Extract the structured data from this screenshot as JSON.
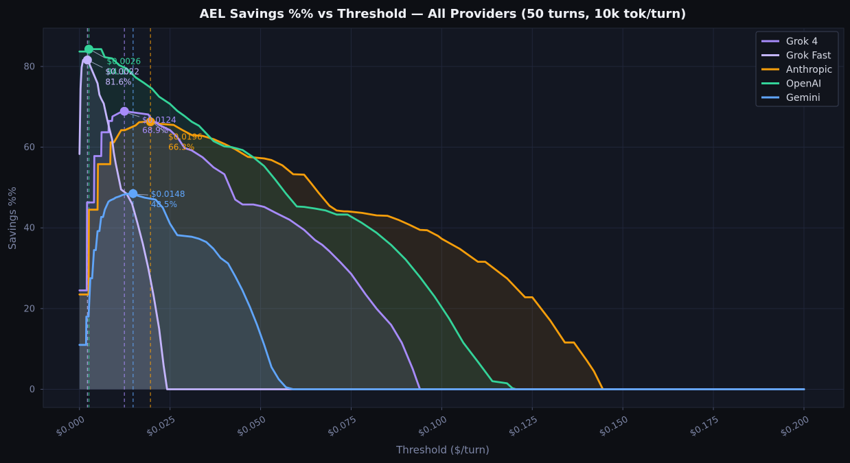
{
  "chart_data": {
    "type": "line",
    "title": "AEL Savings %% vs Threshold — All Providers (50 turns, 10k tok/turn)",
    "xlabel": "Threshold ($/turn)",
    "ylabel": "Savings %%",
    "xlim": [
      -0.01,
      0.211
    ],
    "ylim": [
      -4.5,
      89.5
    ],
    "xticks": [
      0.0,
      0.025,
      0.05,
      0.075,
      0.1,
      0.125,
      0.15,
      0.175,
      0.2
    ],
    "xtick_labels": [
      "$0.000",
      "$0.025",
      "$0.050",
      "$0.075",
      "$0.100",
      "$0.125",
      "$0.150",
      "$0.175",
      "$0.200"
    ],
    "yticks": [
      0,
      20,
      40,
      60,
      80
    ],
    "ytick_labels": [
      "0",
      "20",
      "40",
      "60",
      "80"
    ],
    "grid": true,
    "legend_position": "top-right",
    "series": [
      {
        "name": "Grok 4",
        "color": "#a78bfa",
        "x": [
          0,
          0.002,
          0.0021,
          0.004,
          0.0041,
          0.006,
          0.0061,
          0.008,
          0.0081,
          0.009,
          0.0091,
          0.011,
          0.012,
          0.0124,
          0.015,
          0.019,
          0.02,
          0.022,
          0.025,
          0.027,
          0.029,
          0.031,
          0.034,
          0.037,
          0.04,
          0.043,
          0.045,
          0.048,
          0.051,
          0.054,
          0.058,
          0.062,
          0.065,
          0.067,
          0.069,
          0.072,
          0.075,
          0.079,
          0.082,
          0.086,
          0.089,
          0.092,
          0.093,
          0.094,
          0.095,
          0.096,
          0.2
        ],
        "y": [
          24.5,
          24.5,
          46.3,
          46.3,
          57.8,
          57.8,
          63.7,
          63.7,
          66.5,
          66.5,
          67.6,
          68.5,
          68.9,
          68.9,
          68.6,
          68.1,
          66.8,
          65.5,
          64.2,
          62.5,
          59.8,
          59.2,
          57.5,
          55,
          53.3,
          47,
          45.8,
          45.8,
          45.2,
          43.8,
          42.0,
          39.5,
          37,
          35.8,
          34.2,
          31.5,
          28.6,
          23.5,
          20,
          16,
          11.5,
          5,
          2.5,
          0,
          0,
          0,
          0
        ]
      },
      {
        "name": "Grok Fast",
        "color": "#c4b5fd",
        "x": [
          0,
          0.0003,
          0.0006,
          0.001,
          0.0015,
          0.002,
          0.0022,
          0.0028,
          0.0035,
          0.0042,
          0.005,
          0.0055,
          0.006,
          0.0067,
          0.0075,
          0.0082,
          0.009,
          0.0095,
          0.01,
          0.0115,
          0.013,
          0.0145,
          0.016,
          0.0175,
          0.019,
          0.0205,
          0.022,
          0.0232,
          0.0242,
          0.2
        ],
        "y": [
          58.3,
          74.5,
          79.8,
          81.6,
          81.6,
          81.6,
          81.6,
          80.5,
          79,
          77.5,
          75.8,
          73,
          72,
          70.8,
          67.5,
          64.8,
          62,
          58.5,
          56,
          49.5,
          48.5,
          46,
          41.2,
          36,
          30,
          23,
          15,
          6,
          0,
          0
        ]
      },
      {
        "name": "Anthropic",
        "color": "#f59e0b",
        "x": [
          0,
          0.0025,
          0.0026,
          0.005,
          0.0051,
          0.0085,
          0.0086,
          0.0095,
          0.0115,
          0.0125,
          0.0155,
          0.0165,
          0.0185,
          0.0196,
          0.022,
          0.026,
          0.0285,
          0.031,
          0.034,
          0.037,
          0.04,
          0.043,
          0.0465,
          0.051,
          0.053,
          0.056,
          0.059,
          0.062,
          0.064,
          0.066,
          0.069,
          0.071,
          0.073,
          0.074,
          0.078,
          0.082,
          0.085,
          0.088,
          0.091,
          0.094,
          0.096,
          0.099,
          0.1,
          0.105,
          0.11,
          0.112,
          0.118,
          0.123,
          0.125,
          0.13,
          0.134,
          0.1365,
          0.14,
          0.142,
          0.1445,
          0.2
        ],
        "y": [
          23.5,
          23.5,
          44.5,
          44.5,
          55.8,
          55.8,
          61.2,
          61.2,
          64.2,
          64.2,
          65.4,
          66.2,
          66.3,
          66.3,
          65.8,
          65.5,
          64.2,
          63.0,
          62.8,
          62.0,
          60.8,
          59.5,
          57.6,
          57.2,
          56.8,
          55.5,
          53.3,
          53.2,
          51,
          48.7,
          45.5,
          44.3,
          44.1,
          44.1,
          43.7,
          43.1,
          43.0,
          42,
          40.8,
          39.5,
          39.4,
          38.0,
          37.3,
          34.8,
          31.6,
          31.6,
          27.5,
          22.8,
          22.8,
          17,
          11.6,
          11.6,
          7.2,
          4.5,
          0,
          0
        ]
      },
      {
        "name": "OpenAI",
        "color": "#34d399",
        "x": [
          0,
          0.0005,
          0.001,
          0.0015,
          0.002,
          0.0026,
          0.004,
          0.006,
          0.007,
          0.009,
          0.011,
          0.013,
          0.0155,
          0.018,
          0.02,
          0.022,
          0.025,
          0.027,
          0.029,
          0.031,
          0.033,
          0.035,
          0.037,
          0.04,
          0.042,
          0.045,
          0.048,
          0.051,
          0.054,
          0.057,
          0.06,
          0.062,
          0.065,
          0.068,
          0.071,
          0.074,
          0.078,
          0.082,
          0.086,
          0.09,
          0.094,
          0.098,
          0.102,
          0.106,
          0.11,
          0.114,
          0.118,
          0.1195,
          0.1205,
          0.2
        ],
        "y": [
          83.7,
          83.7,
          83.7,
          83.7,
          83.7,
          84.3,
          84.3,
          84.3,
          82.3,
          82.0,
          80.3,
          79.5,
          77.3,
          75.8,
          74.5,
          72.5,
          70.7,
          69.0,
          67.7,
          66.3,
          65.3,
          63.4,
          61.5,
          60.2,
          60,
          59.3,
          57.5,
          55.3,
          52.0,
          48.5,
          45.3,
          45.2,
          44.8,
          44.3,
          43.3,
          43.3,
          41.2,
          38.8,
          35.8,
          32.2,
          27.8,
          23.0,
          17.6,
          11.5,
          6.8,
          2.0,
          1.5,
          0.3,
          0,
          0
        ]
      },
      {
        "name": "Gemini",
        "color": "#60a5fa",
        "x": [
          0,
          0.0018,
          0.0019,
          0.0025,
          0.003,
          0.0035,
          0.004,
          0.0045,
          0.005,
          0.0055,
          0.006,
          0.0065,
          0.007,
          0.0075,
          0.008,
          0.0085,
          0.009,
          0.0095,
          0.01,
          0.011,
          0.012,
          0.013,
          0.0148,
          0.016,
          0.018,
          0.021,
          0.023,
          0.025,
          0.027,
          0.029,
          0.031,
          0.033,
          0.035,
          0.037,
          0.039,
          0.041,
          0.043,
          0.045,
          0.047,
          0.049,
          0.051,
          0.053,
          0.055,
          0.057,
          0.059,
          0.0605,
          0.2
        ],
        "y": [
          11,
          11,
          18,
          18,
          27.5,
          27.5,
          34.5,
          34.5,
          39.2,
          39.2,
          42.7,
          42.7,
          44.5,
          45.5,
          46.5,
          46.8,
          47.0,
          47.2,
          47.5,
          47.8,
          48.2,
          48.4,
          48.5,
          48.0,
          47.5,
          47.0,
          45.0,
          41.0,
          38.2,
          38.0,
          37.8,
          37.3,
          36.5,
          34.8,
          32.5,
          31.2,
          28.0,
          24.5,
          20.5,
          16.0,
          11.0,
          5.5,
          2.5,
          0.5,
          0,
          0,
          0
        ]
      }
    ],
    "vlines": [
      {
        "x": 0.0022,
        "color": "#c4b5fd"
      },
      {
        "x": 0.0026,
        "color": "#34d399"
      },
      {
        "x": 0.0124,
        "color": "#a78bfa"
      },
      {
        "x": 0.0148,
        "color": "#60a5fa"
      },
      {
        "x": 0.0196,
        "color": "#f59e0b"
      }
    ],
    "annotations": [
      {
        "series": "OpenAI",
        "x": 0.0026,
        "y": 84.3,
        "text_line1": "$0.0026",
        "text_line2": "84.3%",
        "color": "#34d399"
      },
      {
        "series": "Grok Fast",
        "x": 0.0022,
        "y": 81.6,
        "text_line1": "$0.0022",
        "text_line2": "81.6%",
        "color": "#c4b5fd"
      },
      {
        "series": "Grok 4",
        "x": 0.0124,
        "y": 68.9,
        "text_line1": "$0.0124",
        "text_line2": "68.9%",
        "color": "#a78bfa"
      },
      {
        "series": "Anthropic",
        "x": 0.0196,
        "y": 66.3,
        "text_line1": "$0.0196",
        "text_line2": "66.3%",
        "color": "#f59e0b"
      },
      {
        "series": "Gemini",
        "x": 0.0148,
        "y": 48.5,
        "text_line1": "$0.0148",
        "text_line2": "48.5%",
        "color": "#60a5fa"
      }
    ]
  }
}
